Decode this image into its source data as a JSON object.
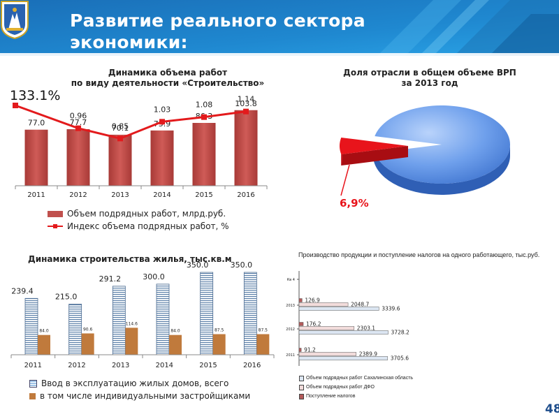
{
  "header": {
    "title_line1": "Развитие реального сектора",
    "title_line2": "экономики:",
    "crest_icon": "coat-of-arms-icon"
  },
  "charts": {
    "construction": {
      "title_line1": "Динамика объема работ",
      "title_line2": "по виду деятельности «Строительство»",
      "big_value": "133.1%",
      "legend": [
        "Объем подрядных работ, млрд.руб.",
        "Индекс объема подрядных работ, %"
      ]
    },
    "vrp": {
      "title_line1": "Доля отрасли в общем объеме ВРП",
      "title_line2": "за 2013 год",
      "share_label": "6,9%"
    },
    "housing": {
      "title": "Динамика строительства жилья, тыс.кв.м",
      "legend": [
        "Ввод в эксплуатацию жилых домов, всего",
        "в том числе индивидуальными застройщиками"
      ]
    },
    "production": {
      "title": "Производство продукции и поступление налогов на одного работающего, тыс.руб.",
      "legend": [
        "Объем подрядных работ Сахалинская область",
        "Объем подрядных работ ДФО",
        "Поступление налогов"
      ]
    }
  },
  "page_number": "48",
  "chart_data": [
    {
      "type": "bar",
      "categories": [
        "2011",
        "2012",
        "2013",
        "2014",
        "2015",
        "2016"
      ],
      "series": [
        {
          "name": "Объем подрядных работ, млрд.руб.",
          "type": "bar",
          "values": [
            77.0,
            77.7,
            70.1,
            75.9,
            86.3,
            103.8
          ],
          "labels": [
            "77.0",
            "77.7",
            "70.1",
            "75.9",
            "86.3",
            "103.8"
          ],
          "color": "#c0504d"
        },
        {
          "name": "Индекс объема подрядных работ, %",
          "type": "line",
          "values": [
            1.331,
            0.96,
            0.85,
            1.03,
            1.08,
            1.14
          ],
          "labels": [
            "",
            "0.96",
            "0.85",
            "1.03",
            "1.08",
            "1.14"
          ],
          "color": "#e31a1c"
        }
      ],
      "ylim": [
        0,
        140
      ]
    },
    {
      "type": "pie",
      "slices": [
        {
          "label": "6,9%",
          "value": 6.9,
          "color": "#e8141b"
        },
        {
          "label": "",
          "value": 93.1,
          "color": "#5b8fe0"
        }
      ]
    },
    {
      "type": "bar",
      "categories": [
        "2011",
        "2012",
        "2013",
        "2014",
        "2015",
        "2016"
      ],
      "series": [
        {
          "name": "Ввод в эксплуатацию жилых домов, всего",
          "values": [
            239.4,
            215.0,
            291.2,
            300.0,
            350.0,
            350.0
          ],
          "labels": [
            "239.4",
            "215.0",
            "291.2",
            "300.0",
            "350.0",
            "350.0"
          ],
          "color": "#9dc3e6"
        },
        {
          "name": "в том числе индивидуальными застройщиками",
          "values": [
            84.0,
            90.6,
            114.6,
            84.0,
            87.5,
            87.5
          ],
          "labels": [
            "84.0",
            "90.6",
            "114.6",
            "84.0",
            "87.5",
            "87.5"
          ],
          "color": "#c07a3c"
        }
      ],
      "ylim": [
        0,
        350
      ]
    },
    {
      "type": "bar",
      "orientation": "horizontal",
      "categories": [
        "2011",
        "2012",
        "2013",
        "Кв 4"
      ],
      "series": [
        {
          "name": "Объем подрядных работ Сахалинская область",
          "values": [
            3705.6,
            3728.2,
            3339.6,
            null
          ],
          "labels": [
            "3705.6",
            "3728.2",
            "3339.6",
            ""
          ],
          "color": "#dce6f2"
        },
        {
          "name": "Объем подрядных работ ДФО",
          "values": [
            2389.9,
            2303.1,
            2048.7,
            null
          ],
          "labels": [
            "2389.9",
            "2303.1",
            "2048.7",
            ""
          ],
          "color": "#f2dcdb"
        },
        {
          "name": "Поступление налогов",
          "values": [
            91.2,
            176.2,
            126.9,
            null
          ],
          "labels": [
            "91.2",
            "176.2",
            "126.9",
            ""
          ],
          "color": "#b35a5a"
        }
      ],
      "xlim": [
        0,
        4000
      ]
    }
  ]
}
